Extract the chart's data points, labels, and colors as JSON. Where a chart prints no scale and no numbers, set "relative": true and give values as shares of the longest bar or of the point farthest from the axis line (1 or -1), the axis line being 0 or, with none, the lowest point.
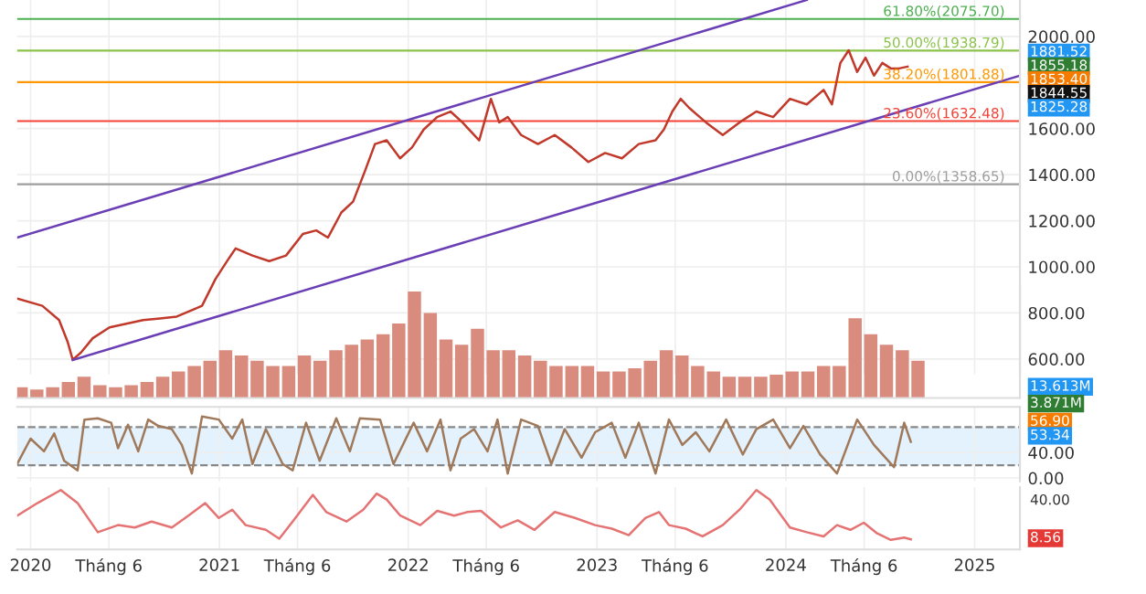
{
  "chart_data": [
    {
      "type": "line",
      "xlim": [
        2019.929,
        2025.24
      ],
      "ylim": [
        534,
        2158
      ],
      "xticks": [
        {
          "value": 2020,
          "label": null
        },
        {
          "value": 2020.415,
          "label": null
        },
        {
          "value": 2021,
          "label": null
        },
        {
          "value": 2021.414,
          "label": null
        },
        {
          "value": 2022,
          "label": null
        },
        {
          "value": 2022.414,
          "label": null
        },
        {
          "value": 2023,
          "label": null
        },
        {
          "value": 2023.414,
          "label": null
        },
        {
          "value": 2024,
          "label": null
        },
        {
          "value": 2024.415,
          "label": null
        },
        {
          "value": 2025,
          "label": null
        }
      ],
      "yticks": [
        {
          "value": 600,
          "label": "600.00"
        },
        {
          "value": 800,
          "label": "800.00"
        },
        {
          "value": 1000,
          "label": "1000.00"
        },
        {
          "value": 1200,
          "label": "1200.00"
        },
        {
          "value": 1400,
          "label": "1400.00"
        },
        {
          "value": 1600,
          "label": "1600.00"
        },
        {
          "value": 1800,
          "label": null
        },
        {
          "value": 2000,
          "label": "2000.00"
        }
      ],
      "tick_labels": "y",
      "grid": true,
      "series": [
        {
          "color": "#c0392b",
          "x": [
            2019.929,
            2020.062,
            2020.151,
            2020.196,
            2020.223,
            2020.267,
            2020.329,
            2020.418,
            2020.507,
            2020.596,
            2020.685,
            2020.774,
            2020.863,
            2020.908,
            2020.979,
            2021.041,
            2021.086,
            2021.175,
            2021.264,
            2021.353,
            2021.442,
            2021.513,
            2021.575,
            2021.646,
            2021.708,
            2021.771,
            2021.824,
            2021.886,
            2021.957,
            2022.02,
            2022.082,
            2022.153,
            2022.224,
            2022.287,
            2022.376,
            2022.438,
            2022.482,
            2022.527,
            2022.598,
            2022.687,
            2022.776,
            2022.865,
            2022.954,
            2023.043,
            2023.132,
            2023.221,
            2023.31,
            2023.354,
            2023.399,
            2023.443,
            2023.488,
            2023.577,
            2023.666,
            2023.755,
            2023.844,
            2023.933,
            2024.022,
            2024.111,
            2024.2,
            2024.244,
            2024.289,
            2024.333,
            2024.378,
            2024.422,
            2024.467,
            2024.511,
            2024.556,
            2024.6,
            2024.645
          ],
          "values": [
            862,
            831,
            769,
            675,
            597,
            628,
            690,
            737,
            753,
            769,
            776,
            784,
            815,
            831,
            947,
            1025,
            1080,
            1049,
            1025,
            1049,
            1143,
            1158,
            1127,
            1236,
            1283,
            1416,
            1533,
            1549,
            1471,
            1518,
            1596,
            1650,
            1674,
            1627,
            1549,
            1729,
            1627,
            1650,
            1572,
            1533,
            1572,
            1518,
            1455,
            1494,
            1471,
            1533,
            1549,
            1596,
            1674,
            1729,
            1690,
            1627,
            1572,
            1627,
            1674,
            1650,
            1729,
            1705,
            1768,
            1705,
            1885,
            1940,
            1846,
            1908,
            1830,
            1885,
            1861,
            1861,
            1869
          ]
        },
        {
          "type": "line",
          "color": "#6a3fb5",
          "x": [
            2019.929,
            2024.111
          ],
          "values": [
            1127,
            2158
          ]
        },
        {
          "type": "line",
          "color": "#6a3fb5",
          "x": [
            2020.223,
            2025.24
          ],
          "values": [
            596,
            1830
          ]
        }
      ],
      "ref_lines": [
        {
          "axis": "y",
          "value": 2075.7,
          "label": "61.80%(2075.70)",
          "color": "#4caf50"
        },
        {
          "axis": "y",
          "value": 1938.79,
          "label": "50.00%(1938.79)",
          "color": "#8bc34a"
        },
        {
          "axis": "y",
          "value": 1801.88,
          "label": "38.20%(1801.88)",
          "color": "#ff9800"
        },
        {
          "axis": "y",
          "value": 1632.48,
          "label": "23.60%(1632.48)",
          "color": "#f44336"
        },
        {
          "axis": "y",
          "value": 1358.65,
          "label": "0.00%(1358.65)",
          "color": "#9e9e9e"
        }
      ],
      "annotations": [
        "1881.52",
        "1855.18",
        "1853.40",
        "1844.55",
        "1825.28"
      ]
    },
    {
      "type": "bar",
      "relative": true,
      "tick_labels": false,
      "xlim": [
        2019.929,
        2025.24
      ],
      "color": "#d98b7e",
      "x": [
        2019.95,
        2020.033,
        2020.117,
        2020.2,
        2020.283,
        2020.367,
        2020.45,
        2020.533,
        2020.617,
        2020.7,
        2020.783,
        2020.867,
        2020.95,
        2021.033,
        2021.117,
        2021.2,
        2021.283,
        2021.367,
        2021.45,
        2021.533,
        2021.617,
        2021.7,
        2021.783,
        2021.867,
        2021.95,
        2022.033,
        2022.117,
        2022.2,
        2022.283,
        2022.367,
        2022.45,
        2022.533,
        2022.617,
        2022.7,
        2022.783,
        2022.867,
        2022.95,
        2023.033,
        2023.117,
        2023.2,
        2023.283,
        2023.367,
        2023.45,
        2023.533,
        2023.617,
        2023.7,
        2023.783,
        2023.867,
        2023.95,
        2024.033,
        2024.117,
        2024.2,
        2024.283,
        2024.367,
        2024.45,
        2024.533,
        2024.617,
        2024.7
      ],
      "values": [
        0.1,
        0.08,
        0.1,
        0.15,
        0.2,
        0.12,
        0.1,
        0.12,
        0.15,
        0.2,
        0.25,
        0.3,
        0.35,
        0.45,
        0.4,
        0.35,
        0.3,
        0.3,
        0.4,
        0.35,
        0.45,
        0.5,
        0.55,
        0.6,
        0.7,
        1.0,
        0.8,
        0.55,
        0.5,
        0.65,
        0.45,
        0.45,
        0.4,
        0.35,
        0.3,
        0.3,
        0.3,
        0.25,
        0.25,
        0.28,
        0.35,
        0.45,
        0.4,
        0.3,
        0.25,
        0.2,
        0.2,
        0.2,
        0.22,
        0.25,
        0.25,
        0.3,
        0.3,
        0.75,
        0.6,
        0.5,
        0.45,
        0.35
      ],
      "annotations": [
        "13.613M",
        "3.871M"
      ]
    },
    {
      "type": "line",
      "tick_labels": "y",
      "xlim": [
        2019.929,
        2025.24
      ],
      "ylim": [
        -5,
        112
      ],
      "grid": true,
      "xticks": [
        {
          "value": 2020,
          "label": null
        },
        {
          "value": 2021,
          "label": null
        },
        {
          "value": 2022,
          "label": null
        },
        {
          "value": 2023,
          "label": null
        },
        {
          "value": 2024,
          "label": null
        },
        {
          "value": 2025,
          "label": null
        }
      ],
      "yticks": [
        {
          "value": 0,
          "label": "0.00"
        },
        {
          "value": 40,
          "label": "40.00"
        }
      ],
      "bands": [
        {
          "axis": "y",
          "from": 20,
          "to": 80,
          "color": "#e3f2fd"
        }
      ],
      "ref_lines": [
        {
          "axis": "y",
          "value": 20,
          "color": "#888888",
          "line_style": "dashed"
        },
        {
          "axis": "y",
          "value": 80,
          "color": "#888888",
          "line_style": "dashed"
        }
      ],
      "series": [
        {
          "color": "#a0785a",
          "x": [
            2019.929,
            2020.0,
            2020.071,
            2020.125,
            2020.178,
            2020.249,
            2020.285,
            2020.356,
            2020.427,
            2020.463,
            2020.516,
            2020.57,
            2020.623,
            2020.676,
            2020.748,
            2020.801,
            2020.854,
            2020.908,
            2020.997,
            2021.068,
            2021.121,
            2021.175,
            2021.246,
            2021.335,
            2021.388,
            2021.459,
            2021.531,
            2021.619,
            2021.691,
            2021.744,
            2021.851,
            2021.922,
            2022.029,
            2022.1,
            2022.171,
            2022.224,
            2022.278,
            2022.349,
            2022.42,
            2022.473,
            2022.527,
            2022.598,
            2022.687,
            2022.758,
            2022.829,
            2022.918,
            2022.99,
            2023.078,
            2023.15,
            2023.221,
            2023.31,
            2023.381,
            2023.452,
            2023.523,
            2023.595,
            2023.684,
            2023.772,
            2023.844,
            2023.933,
            2024.022,
            2024.093,
            2024.182,
            2024.271,
            2024.378,
            2024.467,
            2024.573,
            2024.627,
            2024.662
          ],
          "values": [
            22,
            62,
            42,
            70,
            27,
            12,
            92,
            94,
            87,
            47,
            84,
            42,
            92,
            82,
            77,
            52,
            7,
            97,
            92,
            62,
            92,
            22,
            77,
            22,
            12,
            87,
            27,
            94,
            42,
            94,
            92,
            22,
            87,
            42,
            92,
            12,
            62,
            77,
            42,
            92,
            7,
            92,
            82,
            22,
            77,
            32,
            72,
            87,
            32,
            87,
            7,
            92,
            52,
            72,
            42,
            92,
            37,
            77,
            92,
            47,
            82,
            37,
            7,
            92,
            52,
            17,
            87,
            57
          ]
        }
      ],
      "annotations": [
        "56.90",
        "53.34"
      ]
    },
    {
      "type": "line",
      "relative": true,
      "xlim": [
        2019.929,
        2025.24
      ],
      "grid": "x",
      "xticks": [
        {
          "value": 2020,
          "label": "2020"
        },
        {
          "value": 2020.415,
          "label": "Tháng 6"
        },
        {
          "value": 2021,
          "label": "2021"
        },
        {
          "value": 2021.414,
          "label": "Tháng 6"
        },
        {
          "value": 2022,
          "label": "2022"
        },
        {
          "value": 2022.414,
          "label": "Tháng 6"
        },
        {
          "value": 2023,
          "label": "2023"
        },
        {
          "value": 2023.414,
          "label": "Tháng 6"
        },
        {
          "value": 2024,
          "label": "2024"
        },
        {
          "value": 2024.415,
          "label": "Tháng 6"
        },
        {
          "value": 2025,
          "label": "2025"
        }
      ],
      "series": [
        {
          "color": "#e57373",
          "x": [
            2019.929,
            2020.036,
            2020.16,
            2020.249,
            2020.356,
            2020.463,
            2020.552,
            2020.641,
            2020.748,
            2020.836,
            2020.925,
            2020.997,
            2021.068,
            2021.139,
            2021.246,
            2021.317,
            2021.388,
            2021.495,
            2021.566,
            2021.673,
            2021.762,
            2021.833,
            2021.886,
            2021.958,
            2022.064,
            2022.154,
            2022.243,
            2022.314,
            2022.385,
            2022.491,
            2022.58,
            2022.669,
            2022.776,
            2022.883,
            2022.99,
            2023.079,
            2023.168,
            2023.256,
            2023.328,
            2023.381,
            2023.47,
            2023.559,
            2023.666,
            2023.755,
            2023.844,
            2023.915,
            2024.022,
            2024.111,
            2024.2,
            2024.271,
            2024.342,
            2024.413,
            2024.484,
            2024.556,
            2024.627,
            2024.662
          ],
          "values": [
            0.57,
            0.78,
            1,
            0.78,
            0.29,
            0.41,
            0.37,
            0.47,
            0.37,
            0.57,
            0.78,
            0.53,
            0.67,
            0.41,
            0.33,
            0.18,
            0.47,
            0.92,
            0.63,
            0.47,
            0.67,
            0.94,
            0.84,
            0.57,
            0.41,
            0.65,
            0.57,
            0.63,
            0.65,
            0.37,
            0.49,
            0.33,
            0.63,
            0.53,
            0.41,
            0.35,
            0.24,
            0.53,
            0.63,
            0.41,
            0.35,
            0.22,
            0.41,
            0.67,
            1,
            0.84,
            0.37,
            0.29,
            0.22,
            0.41,
            0.33,
            0.45,
            0.27,
            0.16,
            0.2,
            0.17
          ]
        }
      ],
      "annotations": [
        "40.00",
        "8.56"
      ]
    }
  ]
}
